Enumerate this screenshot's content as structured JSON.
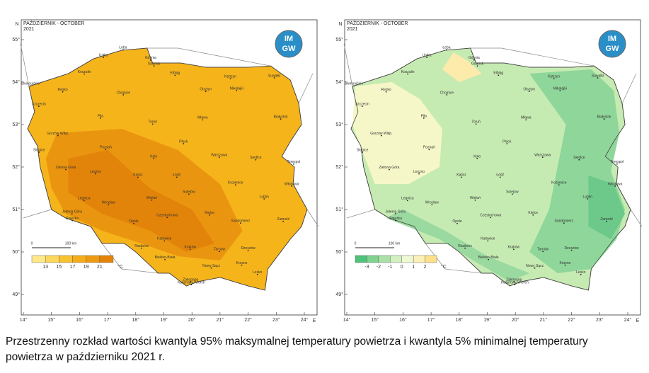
{
  "maps": [
    {
      "title": "PAŹDZIERNIK - OCTOBER",
      "year": "2021",
      "logo": [
        "IM",
        "GW"
      ],
      "legend": {
        "ticks": [
          "13",
          "15",
          "17",
          "19",
          "21"
        ],
        "unit": "°C"
      },
      "scale": {
        "start": "0",
        "end": "100 km"
      }
    },
    {
      "title": "PAŹDZIERNIK - OCTOBER",
      "year": "2021",
      "logo": [
        "IM",
        "GW"
      ],
      "legend": {
        "ticks": [
          "-3",
          "-2",
          "-1",
          "0",
          "1",
          "2"
        ],
        "unit": "°C"
      },
      "scale": {
        "start": "0",
        "end": "100 km"
      }
    }
  ],
  "lat_axis": {
    "name": "N",
    "ticks": [
      "55°",
      "54°",
      "53°",
      "52°",
      "51°",
      "50°",
      "49°"
    ]
  },
  "lon_axis": {
    "name": "E",
    "ticks": [
      "14°",
      "15°",
      "16°",
      "17°",
      "18°",
      "19°",
      "20°",
      "21°",
      "22°",
      "23°",
      "24°"
    ]
  },
  "cities": [
    "Łeba",
    "Ustka",
    "Koszalin",
    "Gdynia",
    "Gdańsk",
    "Elbląg",
    "Kętrzyn",
    "Suwałki",
    "Świnoujście",
    "Resko",
    "Chojnice",
    "Olsztyn",
    "Mikołajki",
    "Szczecin",
    "Piła",
    "Toruń",
    "Mława",
    "Białystok",
    "Gorzów Wlkp.",
    "Słubice",
    "Poznań",
    "Płock",
    "Koło",
    "Warszawa",
    "Siedlce",
    "Terespol",
    "Zielona Góra",
    "Leszno",
    "Kalisz",
    "Łódź",
    "Kozienice",
    "Włodawa",
    "Sulejów",
    "Legnica",
    "Wrocław",
    "Wieluń",
    "Lublin",
    "Jelenia Góra",
    "Śnieżka",
    "Opole",
    "Częstochowa",
    "Kielce",
    "Sandomierz",
    "Zamość",
    "Racibórz",
    "Katowice",
    "Kraków",
    "Tarnów",
    "Rzeszów",
    "Bielsko-Biała",
    "Nowy Sącz",
    "Krosno",
    "Lesko",
    "Zakopane",
    "Kasprowy Wierch"
  ],
  "caption": [
    "Przestrzenny rozkład wartości kwantyla 95% maksymalnej temperatury powietrza i kwantyla 5% minimalnej temperatury",
    "powietrza w październiku 2021 r."
  ]
}
